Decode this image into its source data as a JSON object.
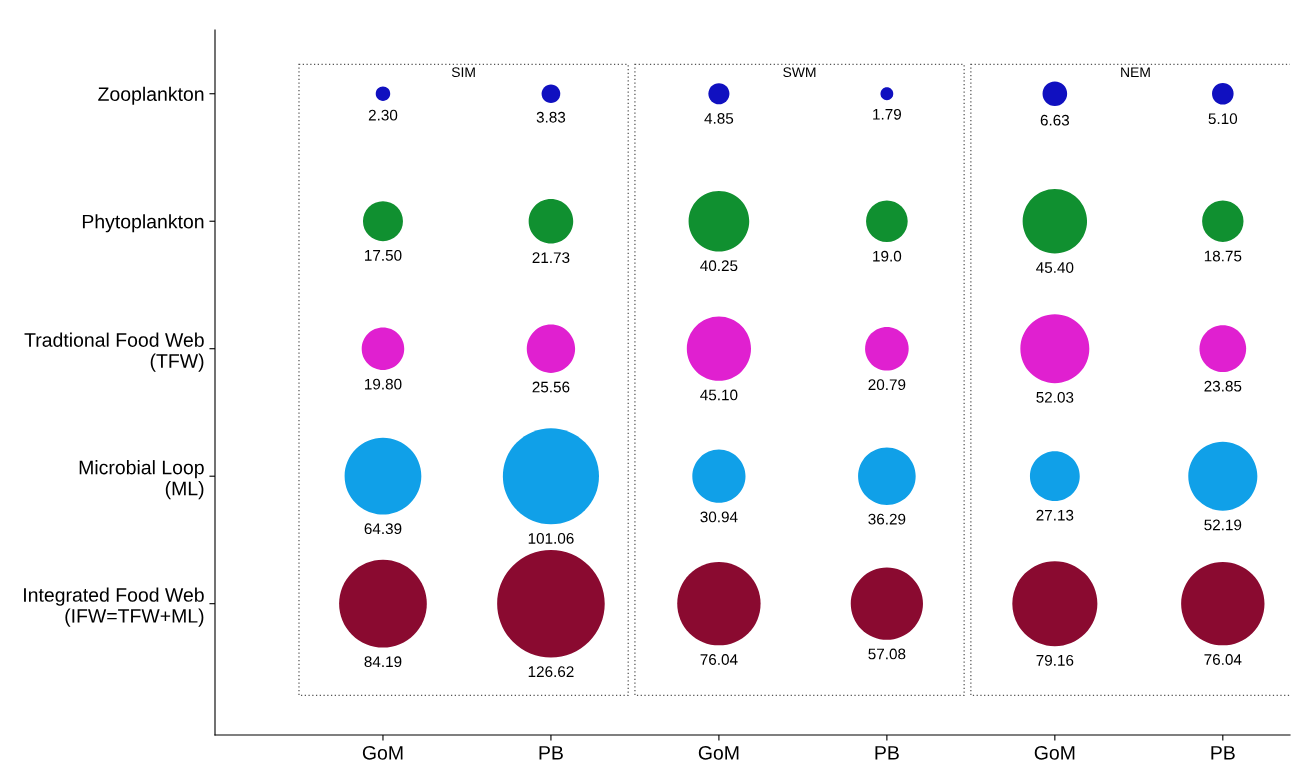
{
  "chart_data": {
    "type": "other",
    "categories": [
      "GoM",
      "PB",
      "GoM",
      "PB",
      "GoM",
      "PB"
    ],
    "y_categories": [
      "Zooplankton",
      "Phytoplankton",
      "Tradtional Food Web\n(TFW)",
      "Microbial Loop\n(ML)",
      "Integrated Food Web\n(IFW=TFW+ML)"
    ],
    "annotations": [
      "SIM",
      "SWM",
      "NEM"
    ],
    "series": [
      {
        "color": "#1010c0",
        "values": [
          2.3,
          3.83,
          4.85,
          1.79,
          6.63,
          5.1
        ],
        "value_labels": [
          "2.30",
          "3.83",
          "4.85",
          "1.79",
          "6.63",
          "5.10"
        ]
      },
      {
        "color": "#109030",
        "values": [
          17.5,
          21.73,
          40.25,
          19.0,
          45.4,
          18.75
        ],
        "value_labels": [
          "17.50",
          "21.73",
          "40.25",
          "19.0",
          "45.40",
          "18.75"
        ]
      },
      {
        "color": "#e020d0",
        "values": [
          19.8,
          25.56,
          45.1,
          20.79,
          52.03,
          23.85
        ],
        "value_labels": [
          "19.80",
          "25.56",
          "45.10",
          "20.79",
          "52.03",
          "23.85"
        ]
      },
      {
        "color": "#10a0e8",
        "values": [
          64.39,
          101.06,
          30.94,
          36.29,
          27.13,
          52.19
        ],
        "value_labels": [
          "64.39",
          "101.06",
          "30.94",
          "36.29",
          "27.13",
          "52.19"
        ]
      },
      {
        "color": "#8a0a30",
        "values": [
          84.19,
          126.62,
          76.04,
          57.08,
          79.16,
          76.04
        ],
        "value_labels": [
          "84.19",
          "126.62",
          "76.04",
          "57.08",
          "79.16",
          "76.04"
        ]
      }
    ]
  }
}
